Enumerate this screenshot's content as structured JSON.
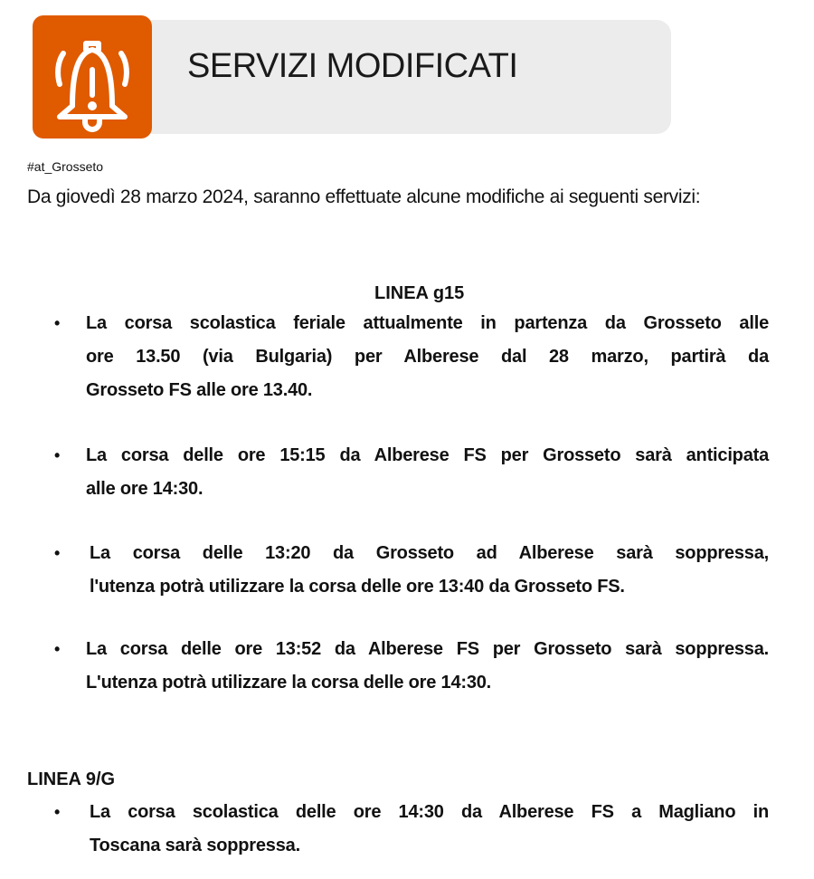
{
  "banner": {
    "title": "SERVIZI MODIFICATI",
    "icon": "bell-alert-icon",
    "accent": "#e05a00",
    "background": "#ececec"
  },
  "hashtag": "#at_Grosseto",
  "intro": "Da giovedì 28 marzo 2024, saranno effettuate alcune modifiche ai seguenti servizi:",
  "sections": [
    {
      "heading": "LINEA g15",
      "items": [
        {
          "lines": [
            "La corsa scolastica feriale attualmente in partenza da Grosseto alle",
            "ore 13.50 (via Bulgaria) per Alberese dal 28 marzo, partirà da",
            "Grosseto FS alle ore 13.40."
          ]
        },
        {
          "lines": [
            "La corsa delle ore 15:15 da Alberese FS per Grosseto sarà anticipata",
            "alle ore 14:30."
          ]
        },
        {
          "lines": [
            "La corsa delle 13:20 da Grosseto ad Alberese sarà soppressa,",
            "l'utenza potrà utilizzare la corsa delle ore 13:40 da Grosseto FS."
          ]
        },
        {
          "lines": [
            "La corsa delle ore 13:52 da Alberese FS per Grosseto sarà soppressa.",
            "L'utenza potrà utilizzare la corsa delle ore 14:30."
          ]
        }
      ]
    },
    {
      "heading": "LINEA 9/G",
      "items": [
        {
          "lines": [
            "La corsa scolastica delle ore 14:30 da Alberese FS a Magliano in",
            "Toscana sarà soppressa."
          ]
        }
      ]
    }
  ],
  "bullet": "•"
}
